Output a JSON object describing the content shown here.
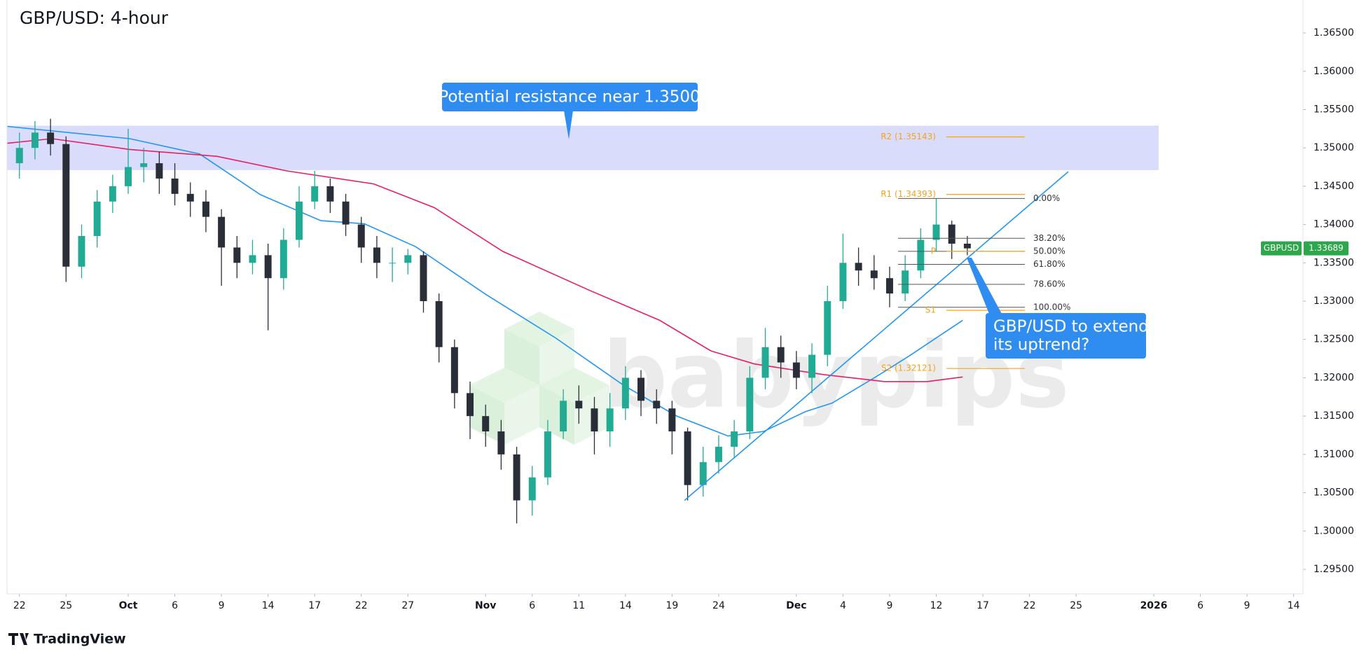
{
  "chart_data": {
    "type": "candlestick",
    "title": "GBP/USD: 4-hour",
    "up_color": "#22ab94",
    "down_color": "#2a2e39",
    "grid": false,
    "xlim": [
      -0.8,
      82.6
    ],
    "ylim": [
      1.2918,
      1.3693
    ],
    "xticks": [
      {
        "value": 0,
        "label": "22"
      },
      {
        "value": 3,
        "label": "25"
      },
      {
        "value": 7,
        "label": "Oct"
      },
      {
        "value": 10,
        "label": "6"
      },
      {
        "value": 13,
        "label": "9"
      },
      {
        "value": 16,
        "label": "14"
      },
      {
        "value": 19,
        "label": "17"
      },
      {
        "value": 22,
        "label": "22"
      },
      {
        "value": 25,
        "label": "27"
      },
      {
        "value": 30,
        "label": "Nov"
      },
      {
        "value": 33,
        "label": "6"
      },
      {
        "value": 36,
        "label": "11"
      },
      {
        "value": 39,
        "label": "14"
      },
      {
        "value": 42,
        "label": "19"
      },
      {
        "value": 45,
        "label": "24"
      },
      {
        "value": 50,
        "label": "Dec"
      },
      {
        "value": 53,
        "label": "4"
      },
      {
        "value": 56,
        "label": "9"
      },
      {
        "value": 59,
        "label": "12"
      },
      {
        "value": 62,
        "label": "17"
      },
      {
        "value": 65,
        "label": "22"
      },
      {
        "value": 68,
        "label": "25"
      },
      {
        "value": 73,
        "label": "2026"
      },
      {
        "value": 76,
        "label": "6"
      },
      {
        "value": 79,
        "label": "9"
      },
      {
        "value": 82,
        "label": "14"
      }
    ],
    "yticks": [
      {
        "value": 1.295,
        "label": "1.29500"
      },
      {
        "value": 1.3,
        "label": "1.30000"
      },
      {
        "value": 1.305,
        "label": "1.30500"
      },
      {
        "value": 1.31,
        "label": "1.31000"
      },
      {
        "value": 1.315,
        "label": "1.31500"
      },
      {
        "value": 1.32,
        "label": "1.32000"
      },
      {
        "value": 1.325,
        "label": "1.32500"
      },
      {
        "value": 1.33,
        "label": "1.33000"
      },
      {
        "value": 1.335,
        "label": "1.33500"
      },
      {
        "value": 1.34,
        "label": "1.34000"
      },
      {
        "value": 1.345,
        "label": "1.34500"
      },
      {
        "value": 1.35,
        "label": "1.35000"
      },
      {
        "value": 1.355,
        "label": "1.35500"
      },
      {
        "value": 1.36,
        "label": "1.36000"
      },
      {
        "value": 1.365,
        "label": "1.36500"
      }
    ],
    "x": [
      0,
      1,
      2,
      3,
      4,
      5,
      6,
      7,
      8,
      9,
      10,
      11,
      12,
      13,
      14,
      15,
      16,
      17,
      18,
      19,
      20,
      21,
      22,
      23,
      24,
      25,
      26,
      27,
      28,
      29,
      30,
      31,
      32,
      33,
      34,
      35,
      36,
      37,
      38,
      39,
      40,
      41,
      42,
      43,
      44,
      45,
      46,
      47,
      48,
      49,
      50,
      51,
      52,
      53,
      54,
      55,
      56,
      57,
      58,
      59,
      60,
      61
    ],
    "open": [
      1.348,
      1.35,
      1.352,
      1.3505,
      1.3345,
      1.3385,
      1.343,
      1.345,
      1.3475,
      1.348,
      1.346,
      1.344,
      1.343,
      1.341,
      1.337,
      1.335,
      1.336,
      1.333,
      1.338,
      1.343,
      1.345,
      1.343,
      1.34,
      1.337,
      1.335,
      1.335,
      1.336,
      1.33,
      1.324,
      1.318,
      1.315,
      1.313,
      1.31,
      1.304,
      1.307,
      1.313,
      1.317,
      1.316,
      1.313,
      1.316,
      1.32,
      1.317,
      1.316,
      1.313,
      1.306,
      1.309,
      1.311,
      1.313,
      1.32,
      1.324,
      1.322,
      1.32,
      1.323,
      1.33,
      1.335,
      1.334,
      1.333,
      1.331,
      1.334,
      1.338,
      1.34,
      1.3375
    ],
    "high": [
      1.352,
      1.3535,
      1.3538,
      1.3515,
      1.34,
      1.3445,
      1.3465,
      1.3525,
      1.35,
      1.3495,
      1.348,
      1.3455,
      1.3445,
      1.342,
      1.3385,
      1.338,
      1.3375,
      1.3395,
      1.345,
      1.347,
      1.346,
      1.344,
      1.341,
      1.3385,
      1.337,
      1.3368,
      1.3365,
      1.331,
      1.325,
      1.3195,
      1.3165,
      1.3145,
      1.311,
      1.3085,
      1.3145,
      1.3185,
      1.319,
      1.3175,
      1.318,
      1.3215,
      1.321,
      1.3185,
      1.317,
      1.3135,
      1.311,
      1.3125,
      1.3145,
      1.3215,
      1.3265,
      1.3255,
      1.3235,
      1.3245,
      1.332,
      1.3388,
      1.337,
      1.336,
      1.3345,
      1.336,
      1.3395,
      1.3434,
      1.3405,
      1.3385
    ],
    "low": [
      1.346,
      1.3485,
      1.349,
      1.3325,
      1.333,
      1.337,
      1.3415,
      1.344,
      1.3455,
      1.344,
      1.3425,
      1.341,
      1.339,
      1.332,
      1.333,
      1.3335,
      1.3262,
      1.3315,
      1.337,
      1.342,
      1.3415,
      1.3385,
      1.335,
      1.333,
      1.3325,
      1.3335,
      1.3285,
      1.322,
      1.316,
      1.312,
      1.311,
      1.308,
      1.301,
      1.302,
      1.306,
      1.312,
      1.314,
      1.31,
      1.311,
      1.3145,
      1.315,
      1.314,
      1.31,
      1.304,
      1.3045,
      1.3075,
      1.3095,
      1.312,
      1.3185,
      1.32,
      1.3185,
      1.318,
      1.3215,
      1.329,
      1.332,
      1.3315,
      1.3292,
      1.33,
      1.333,
      1.3365,
      1.3355,
      1.336
    ],
    "close": [
      1.35,
      1.352,
      1.3505,
      1.3345,
      1.3385,
      1.343,
      1.345,
      1.3475,
      1.348,
      1.346,
      1.344,
      1.343,
      1.341,
      1.337,
      1.335,
      1.336,
      1.333,
      1.338,
      1.343,
      1.345,
      1.343,
      1.34,
      1.337,
      1.335,
      1.335,
      1.336,
      1.33,
      1.324,
      1.318,
      1.315,
      1.313,
      1.31,
      1.304,
      1.307,
      1.313,
      1.317,
      1.316,
      1.313,
      1.316,
      1.32,
      1.317,
      1.316,
      1.313,
      1.306,
      1.309,
      1.311,
      1.313,
      1.32,
      1.324,
      1.322,
      1.32,
      1.323,
      1.33,
      1.335,
      1.334,
      1.333,
      1.331,
      1.334,
      1.338,
      1.34,
      1.3375,
      1.33689
    ],
    "moving_averages": [
      {
        "color": "#2196f3",
        "x": [
          -0.78,
          7.1,
          11.6,
          15.5,
          19.4,
          22.2,
          25.5,
          30.0,
          34.5,
          38.9,
          42.3,
          45.6,
          47.9,
          50.6,
          52.3,
          55.1,
          57.3,
          60.7
        ],
        "values": [
          1.3528,
          1.3512,
          1.3492,
          1.3439,
          1.3405,
          1.3401,
          1.3371,
          1.3309,
          1.3252,
          1.319,
          1.315,
          1.3124,
          1.313,
          1.3156,
          1.3167,
          1.3201,
          1.3229,
          1.3275
        ]
      },
      {
        "color": "#e91e63",
        "x": [
          -0.78,
          2.1,
          7.1,
          12.7,
          17.2,
          22.8,
          26.7,
          31.1,
          36.7,
          41.2,
          44.5,
          47.3,
          51.8,
          55.7,
          58.4,
          60.7
        ],
        "values": [
          1.3506,
          1.3512,
          1.3498,
          1.3489,
          1.347,
          1.3453,
          1.3422,
          1.3365,
          1.3314,
          1.3275,
          1.3235,
          1.3218,
          1.3204,
          1.3195,
          1.3195,
          1.3201
        ]
      }
    ],
    "resistance_zone": {
      "range": [
        1.3471,
        1.3529
      ],
      "color": "#d6d8fb"
    },
    "trendline": {
      "x": [
        42.8,
        67.5
      ],
      "values": [
        1.304,
        1.3469
      ],
      "color": "#2196f3"
    },
    "pivots": {
      "color": "#f7a21b",
      "levels": [
        {
          "value": 1.35143,
          "label": "R2 (1.35143)"
        },
        {
          "value": 1.34393,
          "label": "R1 (1.34393)"
        },
        {
          "value": 1.3365,
          "label": "P"
        },
        {
          "value": 1.3288,
          "label": "S1"
        },
        {
          "value": 1.32121,
          "label": "S2 (1.32121)"
        }
      ]
    },
    "fibonacci": {
      "color": "#555555",
      "levels": [
        {
          "value": 1.3434,
          "label": "0.00%"
        },
        {
          "value": 1.3382,
          "label": "38.20%"
        },
        {
          "value": 1.3365,
          "label": "50.00%"
        },
        {
          "value": 1.3348,
          "label": "61.80%"
        },
        {
          "value": 1.3322,
          "label": "78.60%"
        },
        {
          "value": 1.3292,
          "label": "100.00%"
        }
      ]
    },
    "symbol": "GBPUSD",
    "current_price": {
      "value": 1.33689,
      "label": "1.33689"
    },
    "annotations": [
      "Potential resistance near 1.3500",
      "GBP/USD to extend",
      "its uptrend?"
    ],
    "watermark": "babypips",
    "footer": "TradingView"
  }
}
